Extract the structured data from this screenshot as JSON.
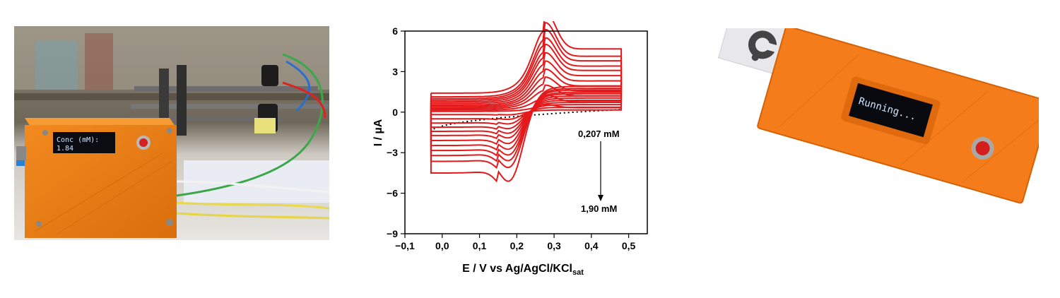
{
  "left_photo": {
    "oled_line1": "Conc (mM):",
    "oled_line2": "1.84"
  },
  "right_photo": {
    "oled_text": "Running..."
  },
  "chart_data": {
    "type": "line",
    "title": "",
    "xlabel": "E / V vs Ag/AgCl/KCl",
    "xlabel_sub": "sat",
    "ylabel": "I / µA",
    "xlim": [
      -0.1,
      0.55
    ],
    "ylim": [
      -9,
      6
    ],
    "xticks": [
      "−0,1",
      "0,0",
      "0,1",
      "0,2",
      "0,3",
      "0,4",
      "0,5"
    ],
    "xtick_values": [
      -0.1,
      0.0,
      0.1,
      0.2,
      0.3,
      0.4,
      0.5
    ],
    "yticks": [
      "6",
      "3",
      "0",
      "−3",
      "−6",
      "−9"
    ],
    "ytick_values": [
      6,
      3,
      0,
      -3,
      -6,
      -9
    ],
    "series_color": "#e31a1c",
    "blank_color": "#000000",
    "annotation_top": "0,207 mM",
    "annotation_bottom": "1,90 mM",
    "potential_range": [
      -0.03,
      0.48
    ],
    "blank": {
      "style": "dotted",
      "left_current": -1.5,
      "right_current": 0.2
    },
    "series": [
      {
        "concentration_mM": 0.207,
        "anodic_peak": 0.4,
        "cathodic_peak": -0.3
      },
      {
        "concentration_mM": 0.35,
        "anodic_peak": 0.9,
        "cathodic_peak": -0.8
      },
      {
        "concentration_mM": 0.5,
        "anodic_peak": 1.4,
        "cathodic_peak": -1.3
      },
      {
        "concentration_mM": 0.65,
        "anodic_peak": 1.8,
        "cathodic_peak": -1.8
      },
      {
        "concentration_mM": 0.8,
        "anodic_peak": 2.2,
        "cathodic_peak": -2.3
      },
      {
        "concentration_mM": 0.95,
        "anodic_peak": 2.6,
        "cathodic_peak": -2.8
      },
      {
        "concentration_mM": 1.1,
        "anodic_peak": 3.0,
        "cathodic_peak": -3.4
      },
      {
        "concentration_mM": 1.25,
        "anodic_peak": 3.4,
        "cathodic_peak": -4.0
      },
      {
        "concentration_mM": 1.4,
        "anodic_peak": 3.7,
        "cathodic_peak": -4.6
      },
      {
        "concentration_mM": 1.55,
        "anodic_peak": 4.1,
        "cathodic_peak": -5.2
      },
      {
        "concentration_mM": 1.7,
        "anodic_peak": 4.4,
        "cathodic_peak": -5.9
      },
      {
        "concentration_mM": 1.9,
        "anodic_peak": 4.8,
        "cathodic_peak": -7.3
      }
    ]
  }
}
